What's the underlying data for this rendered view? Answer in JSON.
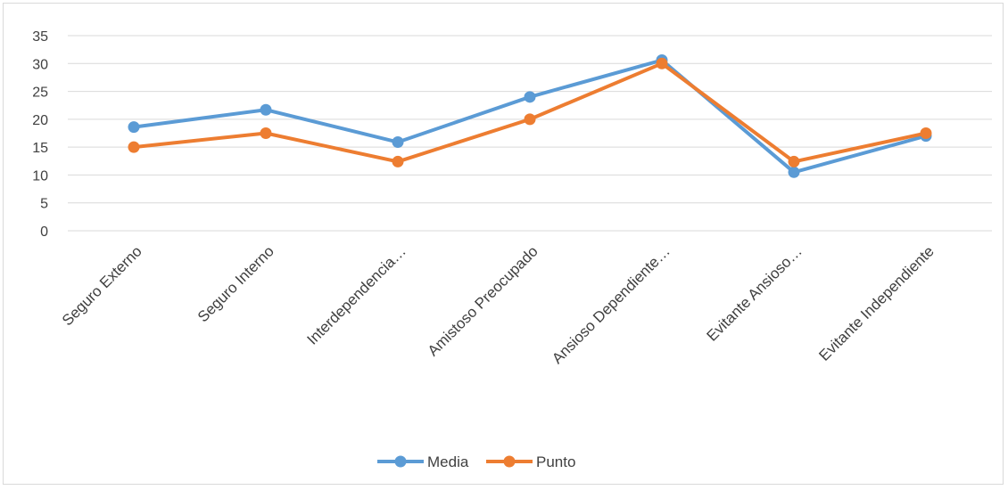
{
  "chart_data": {
    "type": "line",
    "categories": [
      "Seguro Externo",
      "Seguro Interno",
      "Interdependencia…",
      "Amistoso Preocupado",
      "Ansioso Dependiente…",
      "Evitante Ansioso…",
      "Evitante Independiente"
    ],
    "series": [
      {
        "name": "Media",
        "color": "#5b9bd5",
        "values": [
          18.6,
          21.7,
          15.9,
          24.0,
          30.6,
          10.5,
          17.0
        ]
      },
      {
        "name": "Punto",
        "color": "#ed7d31",
        "values": [
          15.0,
          17.5,
          12.4,
          20.0,
          30.0,
          12.4,
          17.5
        ]
      }
    ],
    "yticks": [
      "0",
      "5",
      "10",
      "15",
      "20",
      "25",
      "30",
      "35"
    ],
    "ylim": [
      0,
      35
    ],
    "grid": true,
    "legend": "bottom"
  }
}
